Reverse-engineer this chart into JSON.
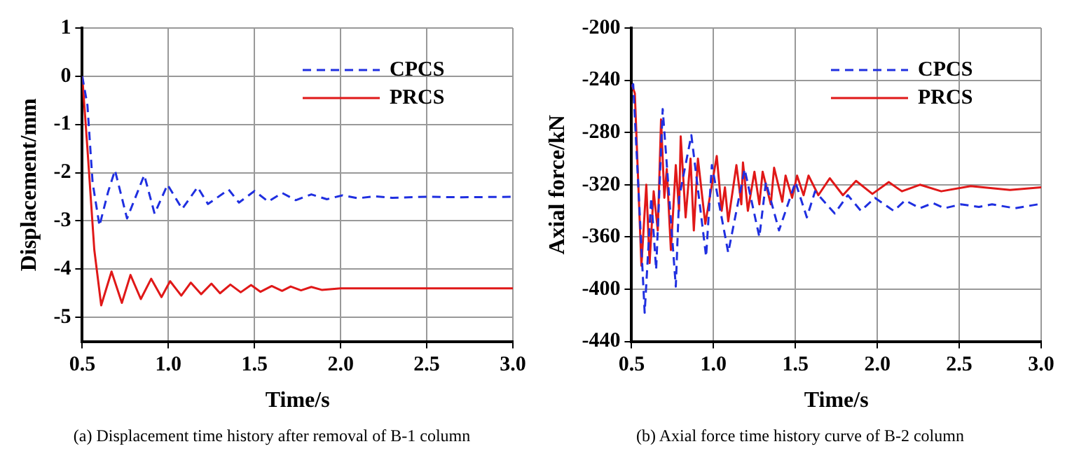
{
  "chart_data": [
    {
      "type": "line",
      "xlabel": "Time/s",
      "ylabel": "Displacement/mm",
      "annotations": [
        "(a) Displacement time history after removal of B-1 column"
      ],
      "xlim": [
        0.5,
        3.0
      ],
      "ylim": [
        -5.5,
        1
      ],
      "xticks": [
        0.5,
        {
          "value": 1,
          "label": "1.0"
        },
        1.5,
        {
          "value": 2,
          "label": "2.0"
        },
        2.5,
        {
          "value": 3,
          "label": "3.0"
        }
      ],
      "yticks": [
        -5,
        -4,
        -3,
        -2,
        -1,
        0,
        1
      ],
      "grid": true,
      "legend": "top right",
      "marker": "none",
      "series": [
        {
          "name": "CPCS",
          "color": "#1f2fe0",
          "line_style": "dashed",
          "x": [
            0.5,
            0.53,
            0.56,
            0.6,
            0.65,
            0.69,
            0.76,
            0.86,
            0.92,
            0.995,
            1.08,
            1.17,
            1.23,
            1.35,
            1.41,
            1.5,
            1.58,
            1.66,
            1.74,
            1.83,
            1.92,
            2.01,
            2.1,
            2.2,
            2.3,
            2.5,
            2.7,
            3.0
          ],
          "values": [
            0,
            -0.6,
            -2.2,
            -3.1,
            -2.4,
            -1.95,
            -2.95,
            -2.05,
            -2.85,
            -2.25,
            -2.75,
            -2.3,
            -2.65,
            -2.35,
            -2.62,
            -2.38,
            -2.6,
            -2.42,
            -2.57,
            -2.45,
            -2.55,
            -2.47,
            -2.53,
            -2.49,
            -2.52,
            -2.5,
            -2.51,
            -2.5
          ]
        },
        {
          "name": "PRCS",
          "color": "#e01818",
          "line_style": "solid",
          "x": [
            0.5,
            0.53,
            0.57,
            0.61,
            0.67,
            0.73,
            0.78,
            0.84,
            0.9,
            0.96,
            1.01,
            1.075,
            1.13,
            1.19,
            1.25,
            1.3,
            1.36,
            1.42,
            1.48,
            1.535,
            1.6,
            1.66,
            1.71,
            1.77,
            1.83,
            1.89,
            2.0,
            2.5,
            3.0
          ],
          "values": [
            0,
            -1.5,
            -3.6,
            -4.75,
            -4.05,
            -4.7,
            -4.12,
            -4.62,
            -4.2,
            -4.58,
            -4.25,
            -4.55,
            -4.28,
            -4.52,
            -4.3,
            -4.5,
            -4.32,
            -4.48,
            -4.33,
            -4.47,
            -4.35,
            -4.45,
            -4.36,
            -4.44,
            -4.37,
            -4.43,
            -4.4,
            -4.4,
            -4.4
          ]
        }
      ]
    },
    {
      "type": "line",
      "xlabel": "Time/s",
      "ylabel": "Axial force/kN",
      "annotations": [
        "(b) Axial force time history curve of B-2 column"
      ],
      "xlim": [
        0.5,
        3.0
      ],
      "ylim": [
        -440,
        -200
      ],
      "xticks": [
        0.5,
        {
          "value": 1,
          "label": "1.0"
        },
        1.5,
        {
          "value": 2,
          "label": "2.0"
        },
        2.5,
        {
          "value": 3,
          "label": "3.0"
        }
      ],
      "yticks": [
        -440,
        -400,
        -360,
        -320,
        -280,
        -240,
        -200
      ],
      "grid": true,
      "legend": "top right",
      "marker": "none",
      "series": [
        {
          "name": "CPCS",
          "color": "#1f2fe0",
          "line_style": "dashed",
          "x": [
            0.5,
            0.51,
            0.58,
            0.62,
            0.65,
            0.69,
            0.77,
            0.79,
            0.865,
            0.955,
            0.99,
            1.09,
            1.19,
            1.28,
            1.32,
            1.4,
            1.5,
            1.57,
            1.62,
            1.74,
            1.82,
            1.9,
            1.985,
            2.1,
            2.17,
            2.26,
            2.34,
            2.41,
            2.51,
            2.62,
            2.7,
            2.84,
            2.98,
            3.0
          ],
          "values": [
            -245,
            -243,
            -418,
            -330,
            -385,
            -262,
            -398,
            -330,
            -282,
            -375,
            -305,
            -372,
            -308,
            -360,
            -318,
            -355,
            -318,
            -345,
            -325,
            -342,
            -328,
            -340,
            -330,
            -340,
            -332,
            -338,
            -334,
            -338,
            -335,
            -337,
            -335,
            -338,
            -335,
            -335
          ]
        },
        {
          "name": "PRCS",
          "color": "#e01818",
          "line_style": "solid",
          "x": [
            0.5,
            0.52,
            0.56,
            0.59,
            0.61,
            0.635,
            0.66,
            0.68,
            0.7,
            0.715,
            0.74,
            0.77,
            0.79,
            0.8,
            0.83,
            0.86,
            0.88,
            0.905,
            0.95,
            1.02,
            1.05,
            1.07,
            1.09,
            1.14,
            1.17,
            1.18,
            1.21,
            1.25,
            1.28,
            1.3,
            1.35,
            1.37,
            1.42,
            1.44,
            1.48,
            1.51,
            1.55,
            1.58,
            1.64,
            1.71,
            1.79,
            1.87,
            1.97,
            2.07,
            2.15,
            2.26,
            2.39,
            2.57,
            2.81,
            3.0
          ],
          "values": [
            -243,
            -250,
            -382,
            -320,
            -380,
            -325,
            -355,
            -270,
            -330,
            -308,
            -370,
            -305,
            -340,
            -283,
            -345,
            -300,
            -355,
            -300,
            -350,
            -298,
            -340,
            -322,
            -348,
            -305,
            -335,
            -303,
            -340,
            -310,
            -335,
            -310,
            -335,
            -307,
            -333,
            -313,
            -330,
            -313,
            -328,
            -313,
            -328,
            -315,
            -328,
            -317,
            -327,
            -318,
            -325,
            -320,
            -325,
            -321,
            -324,
            -322
          ]
        }
      ]
    }
  ]
}
